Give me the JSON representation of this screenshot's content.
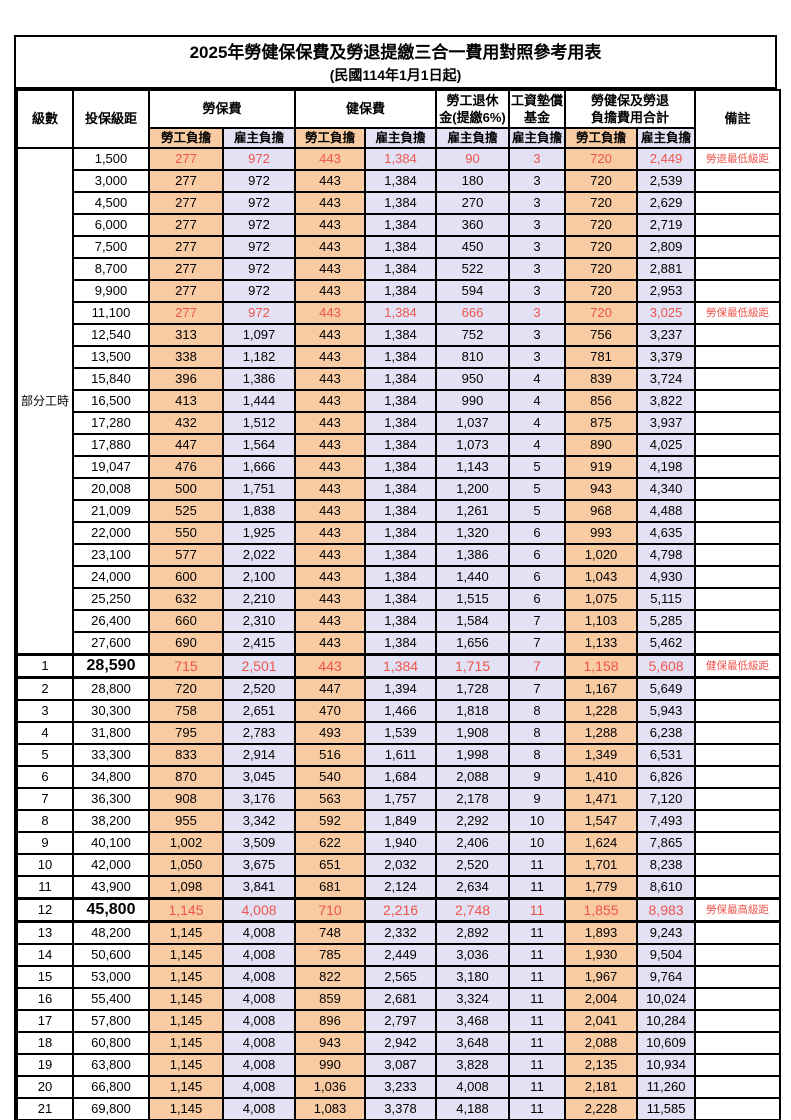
{
  "colors": {
    "employee_bg": "#F9CBA2",
    "employer_bg": "#E3E2F4",
    "highlight_text": "#EE544C",
    "border": "#000000",
    "page_bg": "#FFFFFF"
  },
  "table": {
    "title": "2025年勞健保保費及勞退提繳三合一費用對照參考用表",
    "subtitle": "(民國114年1月1日起)",
    "headers": {
      "level": "級數",
      "bracket": "投保級距",
      "labor": "勞保費",
      "health": "健保費",
      "pension": "勞工退休\n金(提繳6%)",
      "fund": "工資墊償\n基金",
      "total": "勞健保及勞退\n負擔費用合計",
      "note": "備註",
      "employee": "勞工負擔",
      "employer": "雇主負擔"
    },
    "part_time_label": "部分工時",
    "rows": [
      {
        "br": "1,500",
        "v": [
          "277",
          "972",
          "443",
          "1,384",
          "90",
          "3",
          "720",
          "2,449"
        ],
        "note": "勞退最低級距",
        "red": true
      },
      {
        "br": "3,000",
        "v": [
          "277",
          "972",
          "443",
          "1,384",
          "180",
          "3",
          "720",
          "2,539"
        ]
      },
      {
        "br": "4,500",
        "v": [
          "277",
          "972",
          "443",
          "1,384",
          "270",
          "3",
          "720",
          "2,629"
        ]
      },
      {
        "br": "6,000",
        "v": [
          "277",
          "972",
          "443",
          "1,384",
          "360",
          "3",
          "720",
          "2,719"
        ]
      },
      {
        "br": "7,500",
        "v": [
          "277",
          "972",
          "443",
          "1,384",
          "450",
          "3",
          "720",
          "2,809"
        ]
      },
      {
        "br": "8,700",
        "v": [
          "277",
          "972",
          "443",
          "1,384",
          "522",
          "3",
          "720",
          "2,881"
        ]
      },
      {
        "br": "9,900",
        "v": [
          "277",
          "972",
          "443",
          "1,384",
          "594",
          "3",
          "720",
          "2,953"
        ]
      },
      {
        "br": "11,100",
        "v": [
          "277",
          "972",
          "443",
          "1,384",
          "666",
          "3",
          "720",
          "3,025"
        ],
        "note": "勞保最低級距",
        "red": true
      },
      {
        "br": "12,540",
        "v": [
          "313",
          "1,097",
          "443",
          "1,384",
          "752",
          "3",
          "756",
          "3,237"
        ]
      },
      {
        "br": "13,500",
        "v": [
          "338",
          "1,182",
          "443",
          "1,384",
          "810",
          "3",
          "781",
          "3,379"
        ]
      },
      {
        "br": "15,840",
        "v": [
          "396",
          "1,386",
          "443",
          "1,384",
          "950",
          "4",
          "839",
          "3,724"
        ]
      },
      {
        "br": "16,500",
        "v": [
          "413",
          "1,444",
          "443",
          "1,384",
          "990",
          "4",
          "856",
          "3,822"
        ]
      },
      {
        "br": "17,280",
        "v": [
          "432",
          "1,512",
          "443",
          "1,384",
          "1,037",
          "4",
          "875",
          "3,937"
        ]
      },
      {
        "br": "17,880",
        "v": [
          "447",
          "1,564",
          "443",
          "1,384",
          "1,073",
          "4",
          "890",
          "4,025"
        ]
      },
      {
        "br": "19,047",
        "v": [
          "476",
          "1,666",
          "443",
          "1,384",
          "1,143",
          "5",
          "919",
          "4,198"
        ]
      },
      {
        "br": "20,008",
        "v": [
          "500",
          "1,751",
          "443",
          "1,384",
          "1,200",
          "5",
          "943",
          "4,340"
        ]
      },
      {
        "br": "21,009",
        "v": [
          "525",
          "1,838",
          "443",
          "1,384",
          "1,261",
          "5",
          "968",
          "4,488"
        ]
      },
      {
        "br": "22,000",
        "v": [
          "550",
          "1,925",
          "443",
          "1,384",
          "1,320",
          "6",
          "993",
          "4,635"
        ]
      },
      {
        "br": "23,100",
        "v": [
          "577",
          "2,022",
          "443",
          "1,384",
          "1,386",
          "6",
          "1,020",
          "4,798"
        ]
      },
      {
        "br": "24,000",
        "v": [
          "600",
          "2,100",
          "443",
          "1,384",
          "1,440",
          "6",
          "1,043",
          "4,930"
        ]
      },
      {
        "br": "25,250",
        "v": [
          "632",
          "2,210",
          "443",
          "1,384",
          "1,515",
          "6",
          "1,075",
          "5,115"
        ]
      },
      {
        "br": "26,400",
        "v": [
          "660",
          "2,310",
          "443",
          "1,384",
          "1,584",
          "7",
          "1,103",
          "5,285"
        ]
      },
      {
        "br": "27,600",
        "v": [
          "690",
          "2,415",
          "443",
          "1,384",
          "1,656",
          "7",
          "1,133",
          "5,462"
        ]
      },
      {
        "lv": "1",
        "br": "28,590",
        "v": [
          "715",
          "2,501",
          "443",
          "1,384",
          "1,715",
          "7",
          "1,158",
          "5,608"
        ],
        "note": "健保最低級距",
        "red": true,
        "key": true
      },
      {
        "lv": "2",
        "br": "28,800",
        "v": [
          "720",
          "2,520",
          "447",
          "1,394",
          "1,728",
          "7",
          "1,167",
          "5,649"
        ]
      },
      {
        "lv": "3",
        "br": "30,300",
        "v": [
          "758",
          "2,651",
          "470",
          "1,466",
          "1,818",
          "8",
          "1,228",
          "5,943"
        ]
      },
      {
        "lv": "4",
        "br": "31,800",
        "v": [
          "795",
          "2,783",
          "493",
          "1,539",
          "1,908",
          "8",
          "1,288",
          "6,238"
        ]
      },
      {
        "lv": "5",
        "br": "33,300",
        "v": [
          "833",
          "2,914",
          "516",
          "1,611",
          "1,998",
          "8",
          "1,349",
          "6,531"
        ]
      },
      {
        "lv": "6",
        "br": "34,800",
        "v": [
          "870",
          "3,045",
          "540",
          "1,684",
          "2,088",
          "9",
          "1,410",
          "6,826"
        ]
      },
      {
        "lv": "7",
        "br": "36,300",
        "v": [
          "908",
          "3,176",
          "563",
          "1,757",
          "2,178",
          "9",
          "1,471",
          "7,120"
        ]
      },
      {
        "lv": "8",
        "br": "38,200",
        "v": [
          "955",
          "3,342",
          "592",
          "1,849",
          "2,292",
          "10",
          "1,547",
          "7,493"
        ]
      },
      {
        "lv": "9",
        "br": "40,100",
        "v": [
          "1,002",
          "3,509",
          "622",
          "1,940",
          "2,406",
          "10",
          "1,624",
          "7,865"
        ]
      },
      {
        "lv": "10",
        "br": "42,000",
        "v": [
          "1,050",
          "3,675",
          "651",
          "2,032",
          "2,520",
          "11",
          "1,701",
          "8,238"
        ]
      },
      {
        "lv": "11",
        "br": "43,900",
        "v": [
          "1,098",
          "3,841",
          "681",
          "2,124",
          "2,634",
          "11",
          "1,779",
          "8,610"
        ]
      },
      {
        "lv": "12",
        "br": "45,800",
        "v": [
          "1,145",
          "4,008",
          "710",
          "2,216",
          "2,748",
          "11",
          "1,855",
          "8,983"
        ],
        "note": "勞保最高級距",
        "red": true,
        "key": true
      },
      {
        "lv": "13",
        "br": "48,200",
        "v": [
          "1,145",
          "4,008",
          "748",
          "2,332",
          "2,892",
          "11",
          "1,893",
          "9,243"
        ]
      },
      {
        "lv": "14",
        "br": "50,600",
        "v": [
          "1,145",
          "4,008",
          "785",
          "2,449",
          "3,036",
          "11",
          "1,930",
          "9,504"
        ]
      },
      {
        "lv": "15",
        "br": "53,000",
        "v": [
          "1,145",
          "4,008",
          "822",
          "2,565",
          "3,180",
          "11",
          "1,967",
          "9,764"
        ]
      },
      {
        "lv": "16",
        "br": "55,400",
        "v": [
          "1,145",
          "4,008",
          "859",
          "2,681",
          "3,324",
          "11",
          "2,004",
          "10,024"
        ]
      },
      {
        "lv": "17",
        "br": "57,800",
        "v": [
          "1,145",
          "4,008",
          "896",
          "2,797",
          "3,468",
          "11",
          "2,041",
          "10,284"
        ]
      },
      {
        "lv": "18",
        "br": "60,800",
        "v": [
          "1,145",
          "4,008",
          "943",
          "2,942",
          "3,648",
          "11",
          "2,088",
          "10,609"
        ]
      },
      {
        "lv": "19",
        "br": "63,800",
        "v": [
          "1,145",
          "4,008",
          "990",
          "3,087",
          "3,828",
          "11",
          "2,135",
          "10,934"
        ]
      },
      {
        "lv": "20",
        "br": "66,800",
        "v": [
          "1,145",
          "4,008",
          "1,036",
          "3,233",
          "4,008",
          "11",
          "2,181",
          "11,260"
        ]
      },
      {
        "lv": "21",
        "br": "69,800",
        "v": [
          "1,145",
          "4,008",
          "1,083",
          "3,378",
          "4,188",
          "11",
          "2,228",
          "11,585"
        ]
      }
    ]
  }
}
